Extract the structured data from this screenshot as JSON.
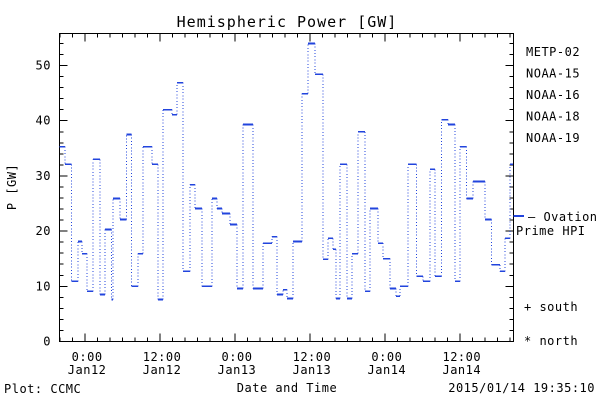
{
  "title": "Hemispheric Power [GW]",
  "footer": {
    "plot_credit": "Plot: CCMC",
    "timestamp": "2015/01/14 19:35:10"
  },
  "chart_data": {
    "type": "line",
    "style": "step",
    "title": "Hemispheric Power [GW]",
    "xlabel": "Date and Time",
    "ylabel": "P [GW]",
    "ylim": [
      0,
      55.8
    ],
    "y_major_ticks": [
      0,
      10,
      20,
      30,
      40,
      50
    ],
    "y_minor_step": 2,
    "x_hours_lim": [
      -4.1,
      68.6
    ],
    "x_minor_step_hours": 2,
    "x_major_ticks": [
      {
        "t": 0,
        "time": "0:00",
        "date": "Jan12"
      },
      {
        "t": 12,
        "time": "12:00",
        "date": "Jan12"
      },
      {
        "t": 24,
        "time": "0:00",
        "date": "Jan13"
      },
      {
        "t": 36,
        "time": "12:00",
        "date": "Jan13"
      },
      {
        "t": 48,
        "time": "0:00",
        "date": "Jan14"
      },
      {
        "t": 60,
        "time": "12:00",
        "date": "Jan14"
      }
    ],
    "grid": false,
    "line_color": "#2244DD",
    "series": [
      {
        "name": "Ovation Prime HPI",
        "t": [
          -4.3,
          -3.2,
          -2.2,
          -1.1,
          -0.5,
          0.3,
          1.3,
          2.4,
          3.2,
          4.2,
          4.5,
          5.6,
          6.6,
          7.4,
          8.5,
          9.3,
          10.7,
          11.7,
          12.5,
          13.9,
          14.7,
          15.7,
          16.8,
          17.6,
          18.7,
          20.3,
          21.1,
          21.9,
          23.2,
          24.3,
          25.3,
          26.9,
          28.5,
          29.9,
          30.7,
          31.7,
          32.3,
          33.3,
          34.7,
          35.7,
          36.8,
          38.1,
          38.9,
          39.7,
          40.2,
          40.8,
          41.9,
          42.7,
          43.7,
          44.8,
          45.6,
          46.9,
          47.7,
          48.8,
          49.8,
          50.4,
          51.7,
          53.1,
          54.1,
          55.2,
          56.0,
          57.1,
          58.1,
          59.2,
          60.0,
          61.1,
          62.1,
          64.0,
          65.1,
          66.4,
          67.2,
          68.0
        ],
        "v": [
          35.3,
          32.1,
          10.9,
          18.1,
          15.9,
          9.1,
          33.0,
          8.5,
          20.3,
          7.6,
          25.9,
          22.1,
          37.5,
          10.0,
          15.9,
          35.3,
          32.1,
          7.6,
          42.0,
          41.1,
          46.9,
          12.7,
          28.4,
          24.1,
          10.0,
          25.9,
          24.1,
          23.2,
          21.2,
          9.6,
          39.3,
          9.6,
          17.8,
          19.0,
          8.5,
          9.4,
          7.8,
          18.1,
          44.9,
          54.0,
          48.4,
          14.9,
          18.7,
          16.7,
          7.8,
          32.1,
          7.8,
          15.9,
          38.0,
          9.1,
          24.1,
          17.8,
          15.0,
          9.6,
          8.2,
          10.0,
          32.1,
          11.8,
          10.9,
          31.2,
          11.8,
          40.2,
          39.3,
          10.9,
          35.3,
          25.9,
          29.0,
          22.1,
          13.9,
          12.7,
          18.7,
          32.1
        ],
        "end_t": 68.5
      }
    ],
    "legend": [
      {
        "label": "METP-02",
        "color": "#000000"
      },
      {
        "label": "NOAA-15",
        "color": "#2244DD"
      },
      {
        "label": "NOAA-16",
        "color": "#33AAFF"
      },
      {
        "label": "NOAA-18",
        "color": "#55EE88"
      },
      {
        "label": "NOAA-19",
        "color": "#FFAA22"
      }
    ],
    "legend_line": {
      "label_line1": "— Ovation",
      "label_line2": "Prime HPI",
      "color": "#2244DD"
    },
    "markers": [
      {
        "symbol": "+",
        "label": "south",
        "text": "+ south"
      },
      {
        "symbol": "*",
        "label": "north",
        "text": "* north"
      }
    ]
  }
}
